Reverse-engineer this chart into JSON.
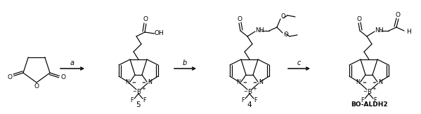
{
  "background_color": "#ffffff",
  "line_color": "#000000",
  "text_color": "#000000",
  "label_a": "a",
  "label_b": "b",
  "label_c": "c",
  "label_5": "5",
  "label_4": "4",
  "label_bold": "BO-ALDH2",
  "figsize": [
    5.99,
    1.63
  ],
  "dpi": 100
}
